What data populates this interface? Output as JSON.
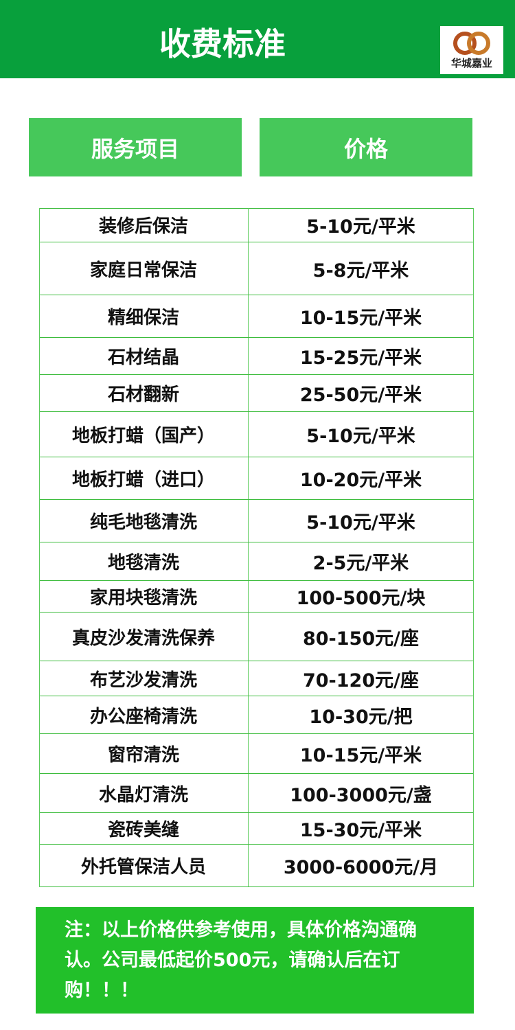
{
  "header": {
    "title": "收费标准",
    "logo_text": "华城嘉业",
    "color": "#08a03c"
  },
  "columns": [
    "服务项目",
    "价格"
  ],
  "rows": [
    {
      "service": "装修后保洁",
      "price": "5-10元/平米"
    },
    {
      "service": "家庭日常保洁",
      "price": "5-8元/平米"
    },
    {
      "service": "精细保洁",
      "price": "10-15元/平米"
    },
    {
      "service": "石材结晶",
      "price": "15-25元/平米"
    },
    {
      "service": "石材翻新",
      "price": "25-50元/平米"
    },
    {
      "service": "地板打蜡（国产）",
      "price": "5-10元/平米"
    },
    {
      "service": "地板打蜡（进口）",
      "price": "10-20元/平米"
    },
    {
      "service": "纯毛地毯清洗",
      "price": "5-10元/平米"
    },
    {
      "service": "地毯清洗",
      "price": "2-5元/平米"
    },
    {
      "service": "家用块毯清洗",
      "price": "100-500元/块"
    },
    {
      "service": "真皮沙发清洗保养",
      "price": "80-150元/座"
    },
    {
      "service": "布艺沙发清洗",
      "price": "70-120元/座"
    },
    {
      "service": "办公座椅清洗",
      "price": "10-30元/把"
    },
    {
      "service": "窗帘清洗",
      "price": "10-15元/平米"
    },
    {
      "service": "水晶灯清洗",
      "price": "100-3000元/盏"
    },
    {
      "service": "瓷砖美缝",
      "price": "15-30元/平米"
    },
    {
      "service": "外托管保洁人员",
      "price": "3000-6000元/月"
    }
  ],
  "note": "注：以上价格供参考使用，具体价格沟通确认。公司最低起价500元，请确认后在订购！！！"
}
